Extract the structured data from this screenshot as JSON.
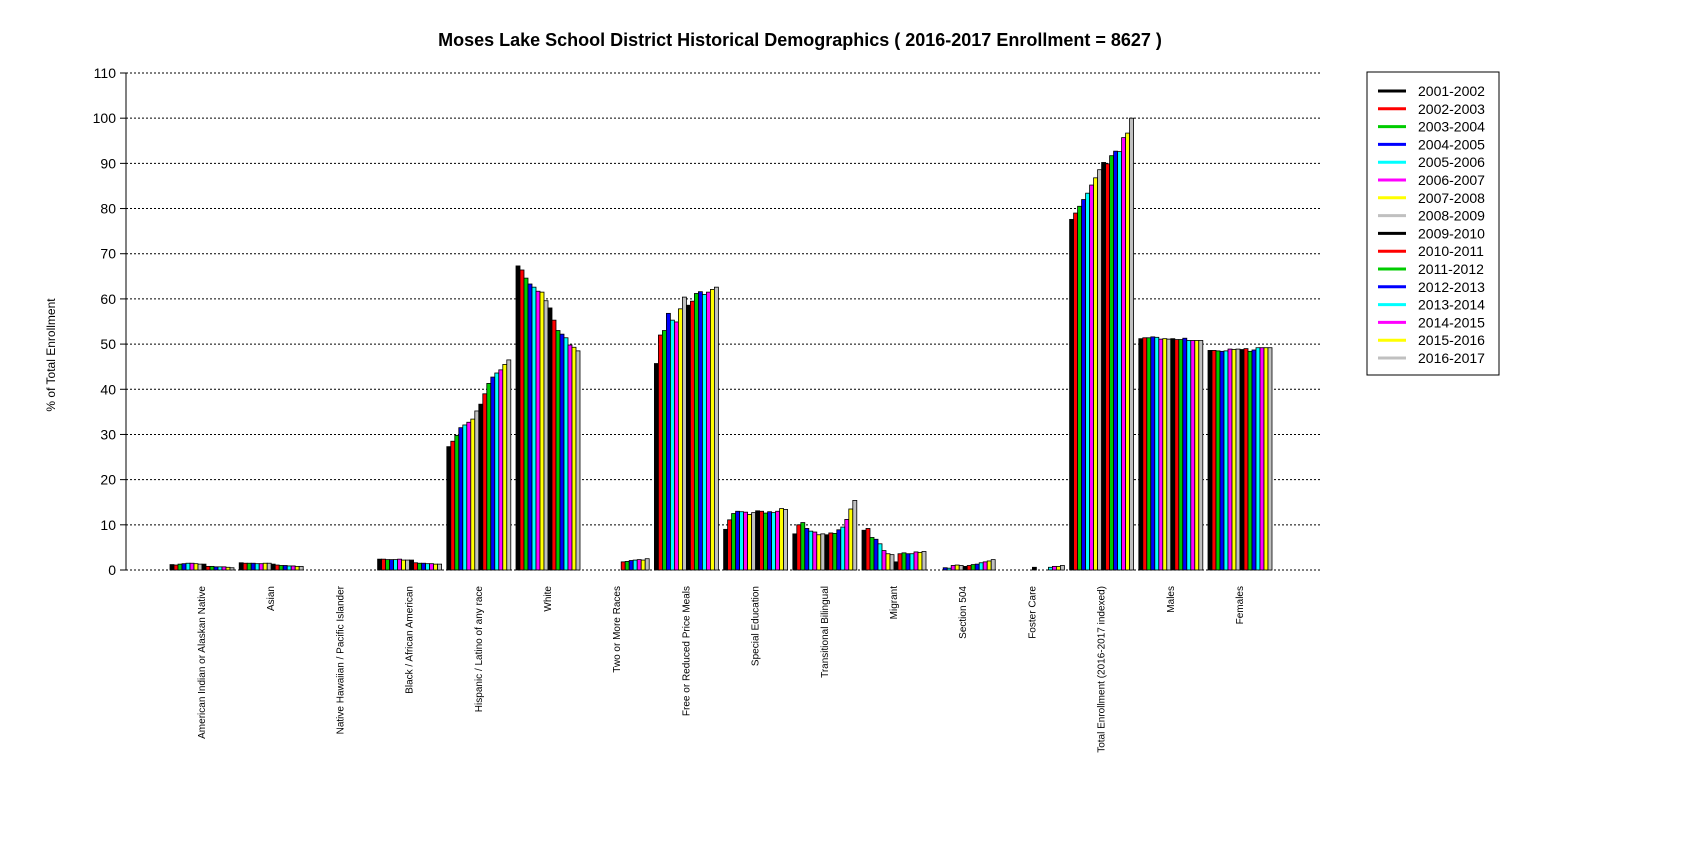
{
  "chart_data": {
    "type": "bar",
    "title": "Moses Lake School District Historical Demographics  ( 2016-2017 Enrollment =  8627 )",
    "ylabel": "% of Total Enrollment",
    "xlabel": "",
    "ylim": [
      0,
      110
    ],
    "yticks": [
      0,
      10,
      20,
      30,
      40,
      50,
      60,
      70,
      80,
      90,
      100,
      110
    ],
    "grid": true,
    "legend_position": "top-right",
    "categories": [
      "American Indian or Alaskan Native",
      "Asian",
      "Native Hawaiian / Pacific Islander",
      "Black / African American",
      "Hispanic / Latino of any race",
      "White",
      "Two or More Races",
      "Free or Reduced Price Meals",
      "Special Education",
      "Transitional Bilingual",
      "Migrant",
      "Section 504",
      "Foster Care",
      "Total Enrollment (2016-2017 indexed)",
      "Males",
      "Females"
    ],
    "series": [
      {
        "name": "2001-2002",
        "color": "#000000",
        "values": [
          1.2,
          1.6,
          0,
          2.4,
          27.3,
          67.3,
          0,
          45.7,
          9.0,
          8.0,
          8.8,
          0,
          0,
          77.6,
          51.2,
          48.6
        ]
      },
      {
        "name": "2002-2003",
        "color": "#ff0000",
        "values": [
          1.1,
          1.5,
          0,
          2.4,
          28.5,
          66.4,
          0,
          52.0,
          11.1,
          10.0,
          9.2,
          0,
          0,
          79.0,
          51.4,
          48.6
        ]
      },
      {
        "name": "2003-2004",
        "color": "#00cc00",
        "values": [
          1.3,
          1.5,
          0,
          2.3,
          29.8,
          64.6,
          0,
          53.0,
          12.5,
          10.5,
          7.2,
          0,
          0,
          80.5,
          51.4,
          48.5
        ]
      },
      {
        "name": "2004-2005",
        "color": "#0000ff",
        "values": [
          1.4,
          1.5,
          0,
          2.3,
          31.5,
          63.3,
          0,
          56.8,
          13.0,
          9.2,
          6.8,
          0.5,
          0,
          82.0,
          51.6,
          48.4
        ]
      },
      {
        "name": "2005-2006",
        "color": "#00ffff",
        "values": [
          1.5,
          1.4,
          0,
          2.3,
          32.1,
          62.6,
          0,
          55.3,
          12.9,
          8.6,
          5.8,
          0.4,
          0,
          83.4,
          51.5,
          48.5
        ]
      },
      {
        "name": "2006-2007",
        "color": "#ff00ff",
        "values": [
          1.5,
          1.4,
          0,
          2.4,
          32.7,
          61.7,
          0,
          54.9,
          12.8,
          8.4,
          4.3,
          1.0,
          0,
          85.2,
          51.1,
          48.9
        ]
      },
      {
        "name": "2007-2008",
        "color": "#ffff00",
        "values": [
          1.4,
          1.5,
          0,
          2.2,
          33.4,
          61.5,
          0,
          57.8,
          12.3,
          7.8,
          3.6,
          1.1,
          0,
          86.8,
          51.2,
          48.8
        ]
      },
      {
        "name": "2008-2009",
        "color": "#c0c0c0",
        "values": [
          1.3,
          1.5,
          0,
          2.2,
          35.2,
          59.6,
          0,
          60.4,
          12.7,
          8.0,
          3.4,
          1.0,
          0,
          88.6,
          51.1,
          48.9
        ]
      },
      {
        "name": "2009-2010",
        "color": "#000000",
        "values": [
          1.3,
          1.3,
          0,
          2.2,
          36.7,
          58.0,
          0,
          58.6,
          13.1,
          7.8,
          1.8,
          0.8,
          0.6,
          90.2,
          51.2,
          48.8
        ]
      },
      {
        "name": "2010-2011",
        "color": "#ff0000",
        "values": [
          0.8,
          1.1,
          0,
          1.6,
          39.0,
          55.3,
          1.8,
          59.5,
          13.0,
          8.2,
          3.6,
          1.0,
          0,
          89.9,
          51.0,
          49.0
        ]
      },
      {
        "name": "2011-2012",
        "color": "#00cc00",
        "values": [
          0.8,
          1.0,
          0,
          1.5,
          41.3,
          53.0,
          1.9,
          61.2,
          12.6,
          8.1,
          3.8,
          1.2,
          0,
          91.7,
          51.0,
          48.4
        ]
      },
      {
        "name": "2012-2013",
        "color": "#0000ff",
        "values": [
          0.7,
          1.0,
          0,
          1.5,
          42.7,
          52.2,
          2.1,
          61.6,
          12.9,
          8.9,
          3.6,
          1.3,
          0,
          92.7,
          51.3,
          48.7
        ]
      },
      {
        "name": "2013-2014",
        "color": "#00ffff",
        "values": [
          0.7,
          0.9,
          0,
          1.4,
          43.6,
          51.4,
          2.2,
          61.0,
          12.7,
          9.5,
          3.6,
          1.6,
          0.6,
          92.6,
          50.8,
          49.2
        ]
      },
      {
        "name": "2014-2015",
        "color": "#ff00ff",
        "values": [
          0.7,
          0.9,
          0,
          1.4,
          44.3,
          49.8,
          2.3,
          61.5,
          13.0,
          11.2,
          4.0,
          1.8,
          0.8,
          95.7,
          50.8,
          49.2
        ]
      },
      {
        "name": "2015-2016",
        "color": "#ffff00",
        "values": [
          0.6,
          0.8,
          0,
          1.3,
          45.5,
          49.3,
          2.2,
          62.1,
          13.6,
          13.5,
          3.9,
          2.0,
          0.8,
          96.7,
          50.8,
          49.2
        ]
      },
      {
        "name": "2016-2017",
        "color": "#c0c0c0",
        "values": [
          0.5,
          0.8,
          0,
          1.3,
          46.5,
          48.5,
          2.5,
          62.6,
          13.4,
          15.4,
          4.1,
          2.3,
          1.0,
          100.0,
          50.8,
          49.2
        ]
      }
    ]
  }
}
